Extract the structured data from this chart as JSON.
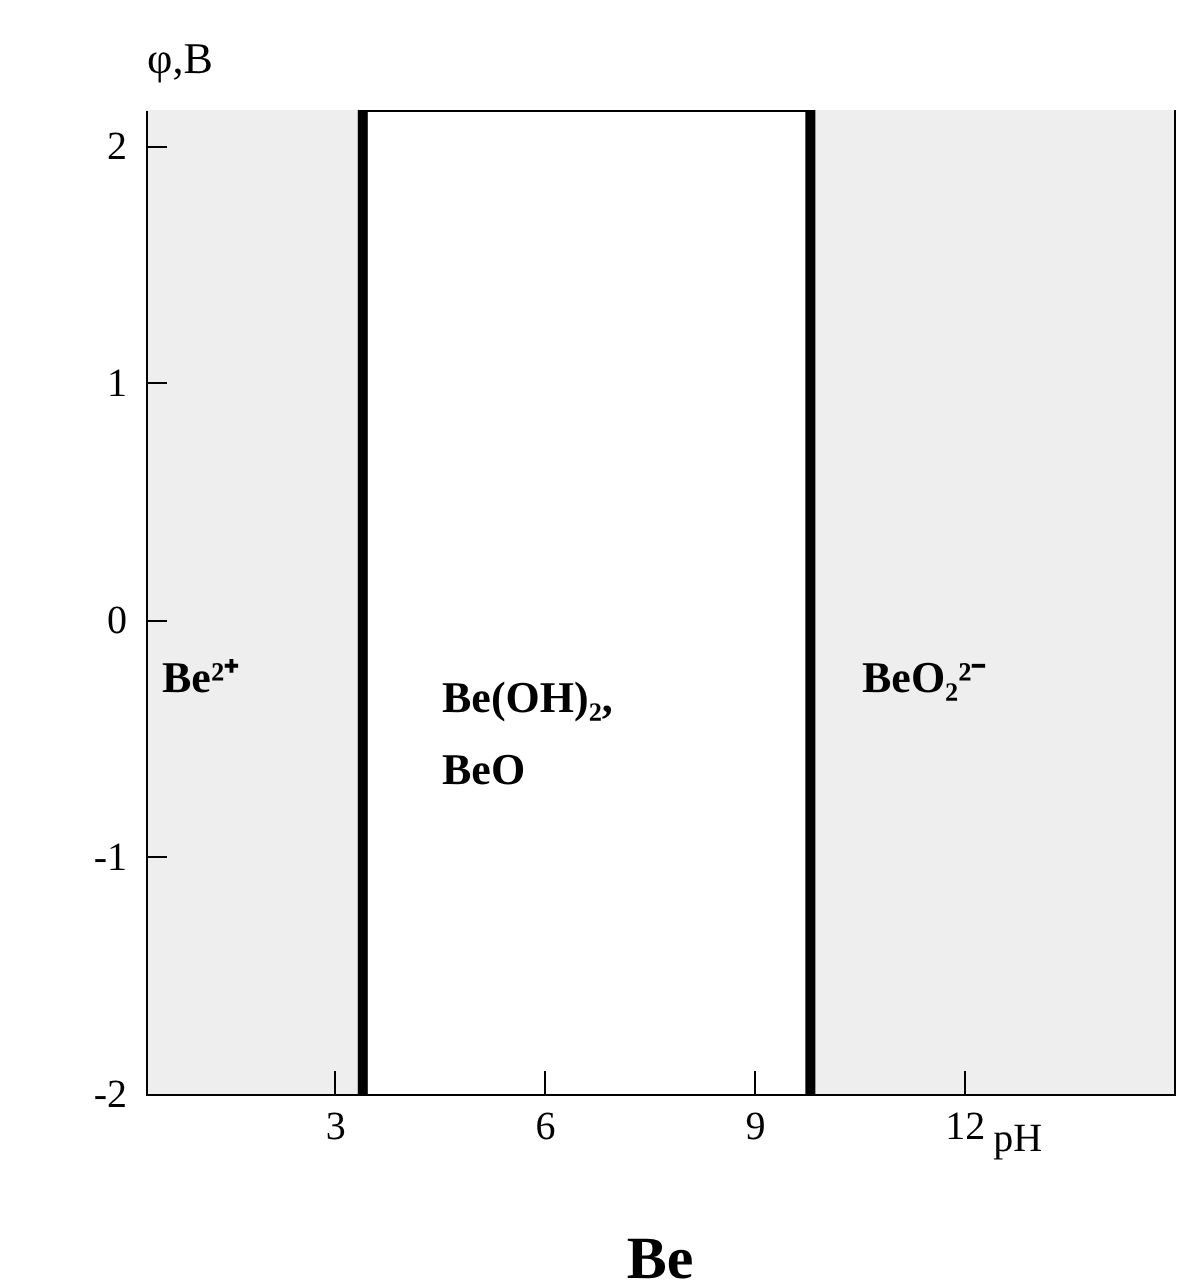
{
  "chart_data": {
    "type": "line",
    "title": "Be",
    "xlabel": "pH",
    "ylabel": "φ,B",
    "xlim": [
      0.3,
      15
    ],
    "ylim": [
      -2,
      2.15
    ],
    "xticks": [
      3,
      6,
      9,
      12
    ],
    "yticks": [
      -2,
      -1,
      0,
      1,
      2
    ],
    "grid": false,
    "ref_lines": [
      {
        "axis": "x",
        "value": 3.4,
        "color": "#000000"
      },
      {
        "axis": "x",
        "value": 9.8,
        "color": "#000000"
      }
    ],
    "bands": [
      {
        "axis": "x",
        "from": 0.3,
        "to": 3.4,
        "color": "#eeeeee"
      },
      {
        "axis": "x",
        "from": 9.8,
        "to": 15,
        "color": "#eeeeee"
      }
    ],
    "annotations": [
      "Be²⁺",
      "Be(OH)₂,\nBeO",
      "BeO₂²⁻"
    ]
  }
}
